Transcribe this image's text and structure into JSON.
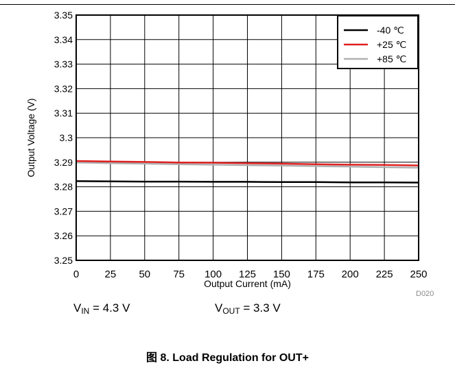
{
  "chart_data": {
    "type": "line",
    "title": "",
    "xlabel": "Output Current (mA)",
    "ylabel": "Output Voltage (V)",
    "xlim": [
      0,
      250
    ],
    "ylim": [
      3.25,
      3.35
    ],
    "x_ticks": [
      0,
      25,
      50,
      75,
      100,
      125,
      150,
      175,
      200,
      225,
      250
    ],
    "y_ticks": [
      3.25,
      3.26,
      3.27,
      3.28,
      3.29,
      3.3,
      3.31,
      3.32,
      3.33,
      3.34,
      3.35
    ],
    "y_tick_labels": [
      "3.25",
      "3.26",
      "3.27",
      "3.28",
      "3.29",
      "3.3",
      "3.31",
      "3.32",
      "3.33",
      "3.34",
      "3.35"
    ],
    "grid": true,
    "legend_position": "top-right",
    "series": [
      {
        "name": "-40 ℃",
        "color": "#000000",
        "x": [
          0,
          25,
          50,
          75,
          100,
          125,
          150,
          175,
          200,
          225,
          250
        ],
        "y": [
          3.2823,
          3.2822,
          3.2821,
          3.2821,
          3.282,
          3.282,
          3.2819,
          3.2819,
          3.2818,
          3.2818,
          3.2817
        ]
      },
      {
        "name": "+25 ℃",
        "color": "#e02020",
        "x": [
          0,
          25,
          50,
          75,
          100,
          125,
          150,
          175,
          200,
          225,
          250
        ],
        "y": [
          3.2905,
          3.2903,
          3.2901,
          3.2899,
          3.2898,
          3.2896,
          3.2894,
          3.2892,
          3.289,
          3.2889,
          3.2887
        ]
      },
      {
        "name": "+85 ℃",
        "color": "#b0b0b0",
        "x": [
          0,
          25,
          50,
          75,
          100,
          125,
          150,
          175,
          200,
          225,
          250
        ],
        "y": [
          3.2899,
          3.2896,
          3.2894,
          3.2892,
          3.289,
          3.2888,
          3.2886,
          3.2884,
          3.2882,
          3.288,
          3.2878
        ]
      }
    ]
  },
  "conditions": {
    "vin_symbol": "V",
    "vin_sub": "IN",
    "vin_value": " = 4.3 V",
    "vout_symbol": "V",
    "vout_sub": "OUT",
    "vout_value": " = 3.3 V"
  },
  "figure_code": "D020",
  "caption": "图 8. Load Regulation for OUT+"
}
